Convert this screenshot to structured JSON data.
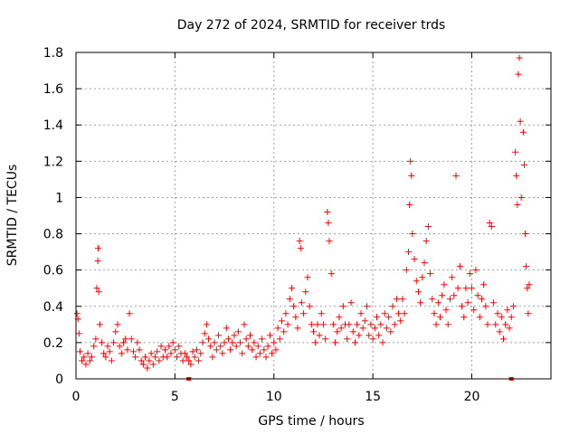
{
  "chart_data": {
    "type": "scatter",
    "title": "Day 272 of 2024, SRMTID for receiver trds",
    "xlabel": "GPS time / hours",
    "ylabel": "SRMTID / TECUs",
    "xlim": [
      0,
      24
    ],
    "ylim": [
      0,
      1.8
    ],
    "xticks": [
      0,
      5,
      10,
      15,
      20
    ],
    "xtick_labels": [
      "0",
      "5",
      "10",
      "15",
      "20"
    ],
    "yticks": [
      0,
      0.2,
      0.4,
      0.6,
      0.8,
      1.0,
      1.2,
      1.4,
      1.6,
      1.8
    ],
    "ytick_labels": [
      "0",
      "0.2",
      "0.4",
      "0.6",
      "0.8",
      "1",
      "1.2",
      "1.4",
      "1.6",
      "1.8"
    ],
    "grid": true,
    "marker": "+",
    "series": [
      {
        "name": "SRMTID",
        "color": "#ff0000",
        "points": [
          [
            0.05,
            0.36
          ],
          [
            0.1,
            0.33
          ],
          [
            0.15,
            0.25
          ],
          [
            0.2,
            0.15
          ],
          [
            0.3,
            0.1
          ],
          [
            0.4,
            0.12
          ],
          [
            0.5,
            0.08
          ],
          [
            0.6,
            0.14
          ],
          [
            0.7,
            0.1
          ],
          [
            0.8,
            0.12
          ],
          [
            0.9,
            0.18
          ],
          [
            1.0,
            0.22
          ],
          [
            1.05,
            0.5
          ],
          [
            1.1,
            0.65
          ],
          [
            1.12,
            0.72
          ],
          [
            1.15,
            0.48
          ],
          [
            1.2,
            0.3
          ],
          [
            1.3,
            0.2
          ],
          [
            1.4,
            0.14
          ],
          [
            1.5,
            0.12
          ],
          [
            1.6,
            0.18
          ],
          [
            1.7,
            0.15
          ],
          [
            1.8,
            0.1
          ],
          [
            1.9,
            0.2
          ],
          [
            2.0,
            0.26
          ],
          [
            2.1,
            0.3
          ],
          [
            2.2,
            0.18
          ],
          [
            2.3,
            0.14
          ],
          [
            2.4,
            0.2
          ],
          [
            2.5,
            0.22
          ],
          [
            2.6,
            0.16
          ],
          [
            2.7,
            0.36
          ],
          [
            2.8,
            0.22
          ],
          [
            2.9,
            0.15
          ],
          [
            3.0,
            0.12
          ],
          [
            3.1,
            0.2
          ],
          [
            3.2,
            0.16
          ],
          [
            3.3,
            0.1
          ],
          [
            3.4,
            0.08
          ],
          [
            3.5,
            0.12
          ],
          [
            3.6,
            0.06
          ],
          [
            3.7,
            0.1
          ],
          [
            3.8,
            0.14
          ],
          [
            3.9,
            0.08
          ],
          [
            4.0,
            0.12
          ],
          [
            4.1,
            0.15
          ],
          [
            4.2,
            0.1
          ],
          [
            4.3,
            0.18
          ],
          [
            4.4,
            0.12
          ],
          [
            4.5,
            0.16
          ],
          [
            4.6,
            0.12
          ],
          [
            4.7,
            0.18
          ],
          [
            4.8,
            0.14
          ],
          [
            4.9,
            0.2
          ],
          [
            5.0,
            0.16
          ],
          [
            5.1,
            0.12
          ],
          [
            5.2,
            0.18
          ],
          [
            5.3,
            0.14
          ],
          [
            5.4,
            0.1
          ],
          [
            5.5,
            0.14
          ],
          [
            5.6,
            0.12
          ],
          [
            5.7,
            0.1
          ],
          [
            5.8,
            0.08
          ],
          [
            5.9,
            0.15
          ],
          [
            6.0,
            0.12
          ],
          [
            6.1,
            0.16
          ],
          [
            6.2,
            0.1
          ],
          [
            6.3,
            0.14
          ],
          [
            6.4,
            0.2
          ],
          [
            6.5,
            0.25
          ],
          [
            6.6,
            0.3
          ],
          [
            6.7,
            0.22
          ],
          [
            6.8,
            0.18
          ],
          [
            6.9,
            0.12
          ],
          [
            7.0,
            0.2
          ],
          [
            7.1,
            0.16
          ],
          [
            7.2,
            0.24
          ],
          [
            7.3,
            0.18
          ],
          [
            7.4,
            0.14
          ],
          [
            7.5,
            0.2
          ],
          [
            7.6,
            0.28
          ],
          [
            7.7,
            0.22
          ],
          [
            7.8,
            0.16
          ],
          [
            7.9,
            0.2
          ],
          [
            8.0,
            0.24
          ],
          [
            8.1,
            0.18
          ],
          [
            8.2,
            0.26
          ],
          [
            8.3,
            0.2
          ],
          [
            8.4,
            0.14
          ],
          [
            8.5,
            0.3
          ],
          [
            8.6,
            0.22
          ],
          [
            8.7,
            0.18
          ],
          [
            8.8,
            0.24
          ],
          [
            8.9,
            0.16
          ],
          [
            9.0,
            0.2
          ],
          [
            9.1,
            0.12
          ],
          [
            9.2,
            0.18
          ],
          [
            9.3,
            0.14
          ],
          [
            9.4,
            0.22
          ],
          [
            9.5,
            0.16
          ],
          [
            9.6,
            0.12
          ],
          [
            9.7,
            0.18
          ],
          [
            9.8,
            0.24
          ],
          [
            9.9,
            0.14
          ],
          [
            10.0,
            0.2
          ],
          [
            10.1,
            0.16
          ],
          [
            10.2,
            0.28
          ],
          [
            10.3,
            0.22
          ],
          [
            10.4,
            0.32
          ],
          [
            10.5,
            0.26
          ],
          [
            10.6,
            0.36
          ],
          [
            10.7,
            0.3
          ],
          [
            10.8,
            0.44
          ],
          [
            10.9,
            0.5
          ],
          [
            11.0,
            0.4
          ],
          [
            11.1,
            0.34
          ],
          [
            11.2,
            0.28
          ],
          [
            11.3,
            0.76
          ],
          [
            11.35,
            0.72
          ],
          [
            11.4,
            0.42
          ],
          [
            11.5,
            0.36
          ],
          [
            11.6,
            0.48
          ],
          [
            11.7,
            0.56
          ],
          [
            11.8,
            0.4
          ],
          [
            11.9,
            0.3
          ],
          [
            12.0,
            0.26
          ],
          [
            12.1,
            0.2
          ],
          [
            12.2,
            0.3
          ],
          [
            12.3,
            0.24
          ],
          [
            12.4,
            0.36
          ],
          [
            12.5,
            0.3
          ],
          [
            12.6,
            0.22
          ],
          [
            12.7,
            0.92
          ],
          [
            12.75,
            0.86
          ],
          [
            12.8,
            0.76
          ],
          [
            12.9,
            0.58
          ],
          [
            13.0,
            0.3
          ],
          [
            13.1,
            0.2
          ],
          [
            13.2,
            0.26
          ],
          [
            13.3,
            0.34
          ],
          [
            13.4,
            0.28
          ],
          [
            13.5,
            0.4
          ],
          [
            13.6,
            0.3
          ],
          [
            13.7,
            0.22
          ],
          [
            13.8,
            0.3
          ],
          [
            13.9,
            0.42
          ],
          [
            14.0,
            0.26
          ],
          [
            14.1,
            0.2
          ],
          [
            14.2,
            0.3
          ],
          [
            14.3,
            0.24
          ],
          [
            14.4,
            0.36
          ],
          [
            14.5,
            0.28
          ],
          [
            14.6,
            0.32
          ],
          [
            14.7,
            0.4
          ],
          [
            14.8,
            0.24
          ],
          [
            14.9,
            0.3
          ],
          [
            15.0,
            0.22
          ],
          [
            15.1,
            0.28
          ],
          [
            15.2,
            0.34
          ],
          [
            15.3,
            0.24
          ],
          [
            15.4,
            0.3
          ],
          [
            15.5,
            0.2
          ],
          [
            15.6,
            0.36
          ],
          [
            15.7,
            0.28
          ],
          [
            15.8,
            0.34
          ],
          [
            15.9,
            0.26
          ],
          [
            16.0,
            0.4
          ],
          [
            16.1,
            0.3
          ],
          [
            16.2,
            0.44
          ],
          [
            16.3,
            0.36
          ],
          [
            16.4,
            0.32
          ],
          [
            16.5,
            0.44
          ],
          [
            16.6,
            0.36
          ],
          [
            16.7,
            0.6
          ],
          [
            16.8,
            0.7
          ],
          [
            16.85,
            0.96
          ],
          [
            16.9,
            1.2
          ],
          [
            16.95,
            1.12
          ],
          [
            17.0,
            0.8
          ],
          [
            17.1,
            0.66
          ],
          [
            17.2,
            0.54
          ],
          [
            17.3,
            0.48
          ],
          [
            17.4,
            0.42
          ],
          [
            17.5,
            0.56
          ],
          [
            17.6,
            0.64
          ],
          [
            17.7,
            0.76
          ],
          [
            17.8,
            0.84
          ],
          [
            17.9,
            0.58
          ],
          [
            18.0,
            0.44
          ],
          [
            18.1,
            0.36
          ],
          [
            18.2,
            0.3
          ],
          [
            18.3,
            0.42
          ],
          [
            18.4,
            0.34
          ],
          [
            18.5,
            0.46
          ],
          [
            18.6,
            0.52
          ],
          [
            18.7,
            0.38
          ],
          [
            18.8,
            0.3
          ],
          [
            18.9,
            0.44
          ],
          [
            19.0,
            0.56
          ],
          [
            19.1,
            0.46
          ],
          [
            19.2,
            1.12
          ],
          [
            19.3,
            0.5
          ],
          [
            19.4,
            0.62
          ],
          [
            19.5,
            0.4
          ],
          [
            19.6,
            0.34
          ],
          [
            19.7,
            0.5
          ],
          [
            19.8,
            0.42
          ],
          [
            19.9,
            0.58
          ],
          [
            20.0,
            0.5
          ],
          [
            20.1,
            0.38
          ],
          [
            20.2,
            0.6
          ],
          [
            20.3,
            0.46
          ],
          [
            20.4,
            0.34
          ],
          [
            20.5,
            0.44
          ],
          [
            20.6,
            0.52
          ],
          [
            20.7,
            0.4
          ],
          [
            20.8,
            0.3
          ],
          [
            20.9,
            0.86
          ],
          [
            21.0,
            0.84
          ],
          [
            21.1,
            0.42
          ],
          [
            21.2,
            0.3
          ],
          [
            21.3,
            0.36
          ],
          [
            21.4,
            0.26
          ],
          [
            21.5,
            0.34
          ],
          [
            21.6,
            0.22
          ],
          [
            21.7,
            0.3
          ],
          [
            21.8,
            0.38
          ],
          [
            21.9,
            0.28
          ],
          [
            22.0,
            0.34
          ],
          [
            22.1,
            0.4
          ],
          [
            22.2,
            1.25
          ],
          [
            22.25,
            1.12
          ],
          [
            22.3,
            0.96
          ],
          [
            22.35,
            1.68
          ],
          [
            22.4,
            1.77
          ],
          [
            22.45,
            1.42
          ],
          [
            22.5,
            1.0
          ],
          [
            22.6,
            1.36
          ],
          [
            22.65,
            1.18
          ],
          [
            22.7,
            0.8
          ],
          [
            22.75,
            0.62
          ],
          [
            22.8,
            0.5
          ],
          [
            22.85,
            0.36
          ],
          [
            22.9,
            0.52
          ]
        ]
      }
    ],
    "flagged_points": [
      [
        5.7,
        0.0
      ],
      [
        22.0,
        0.0
      ]
    ]
  }
}
